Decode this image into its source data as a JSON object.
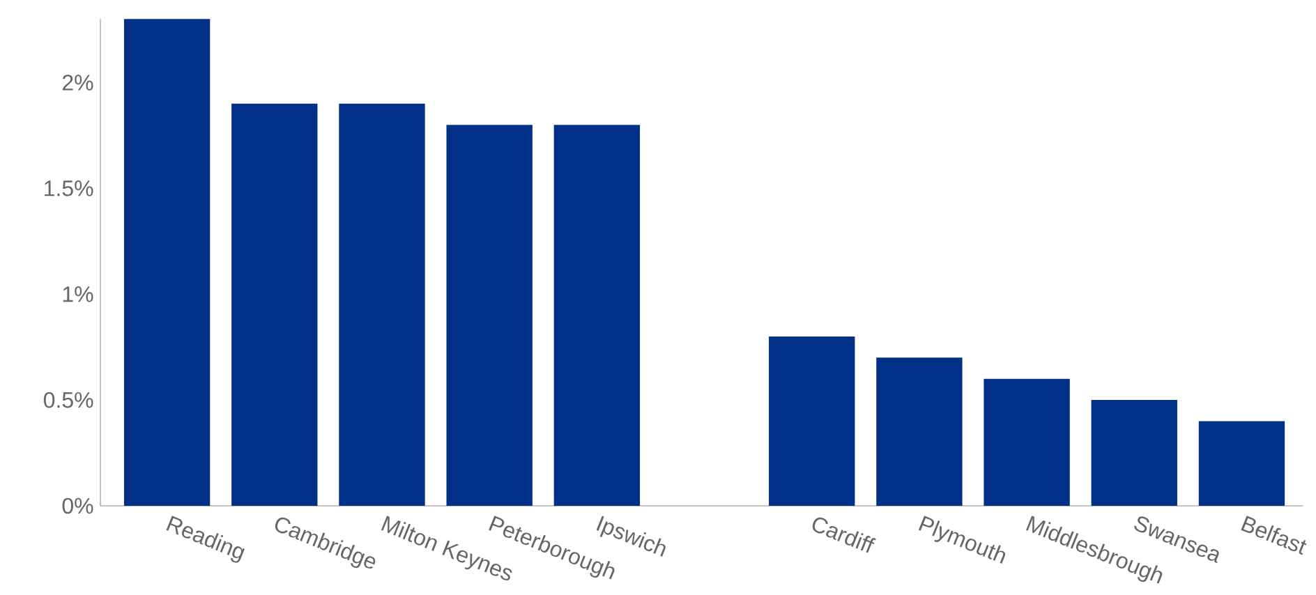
{
  "chart_data": {
    "type": "bar",
    "categories": [
      "Reading",
      "Cambridge",
      "Milton Keynes",
      "Peterborough",
      "Ipswich",
      null,
      "Cardiff",
      "Plymouth",
      "Middlesbrough",
      "Swansea",
      "Belfast"
    ],
    "values": [
      2.3,
      1.9,
      1.9,
      1.8,
      1.8,
      null,
      0.8,
      0.7,
      0.6,
      0.5,
      0.4
    ],
    "color": "#003087",
    "ylim": [
      0,
      2.3
    ],
    "yticks": [
      {
        "value": 0,
        "label": "0%"
      },
      {
        "value": 0.5,
        "label": "0.5%"
      },
      {
        "value": 1,
        "label": "1%"
      },
      {
        "value": 1.5,
        "label": "1.5%"
      },
      {
        "value": 2,
        "label": "2%"
      }
    ],
    "grid": false
  }
}
